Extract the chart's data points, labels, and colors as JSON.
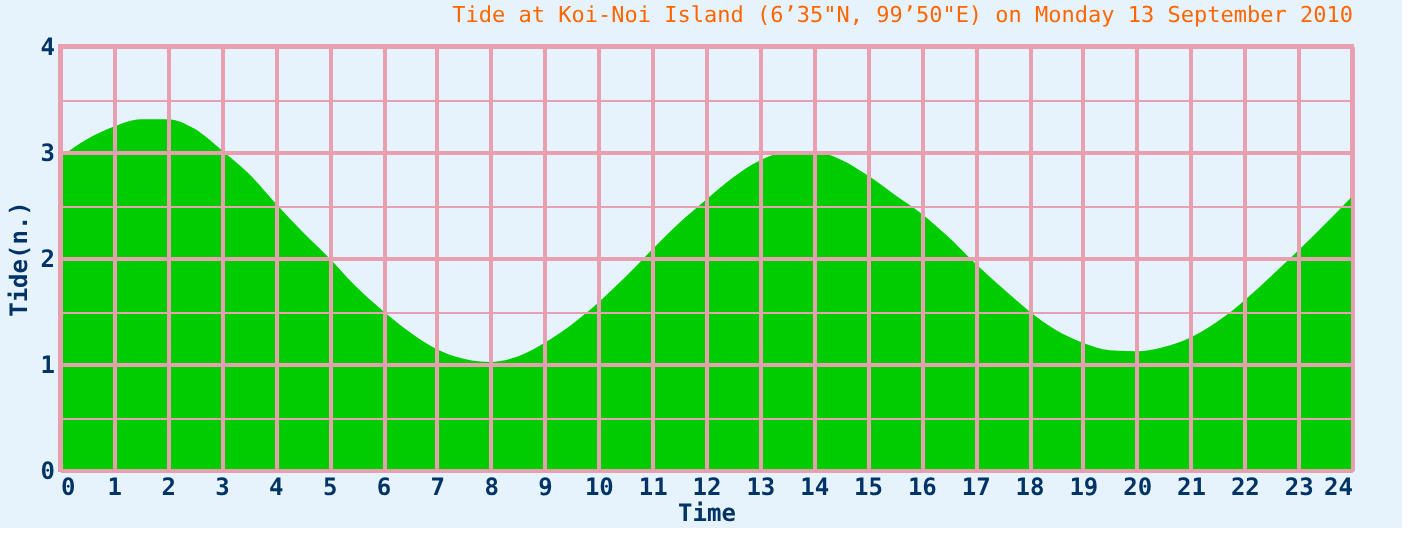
{
  "chart_data": {
    "type": "area",
    "title": "Tide at Koi-Noi Island (6’35\"N, 99’50\"E) on Monday 13 September 2010",
    "xlabel": "Time",
    "ylabel": "Tide(n.)",
    "x": [
      0,
      0.5,
      1,
      1.5,
      2,
      2.5,
      3,
      3.5,
      4,
      4.5,
      5,
      5.5,
      6,
      6.5,
      7,
      7.5,
      8,
      8.5,
      9,
      9.5,
      10,
      10.5,
      11,
      11.5,
      12,
      12.5,
      13,
      13.5,
      14,
      14.5,
      15,
      15.5,
      16,
      16.5,
      17,
      17.5,
      18,
      18.5,
      19,
      19.5,
      20,
      20.5,
      21,
      21.5,
      22,
      22.5,
      23,
      23.5,
      24
    ],
    "series": [
      {
        "color": "#00cc00",
        "values": [
          2.95,
          3.12,
          3.24,
          3.31,
          3.31,
          3.22,
          3.02,
          2.8,
          2.52,
          2.25,
          2.0,
          1.73,
          1.5,
          1.3,
          1.14,
          1.05,
          1.02,
          1.07,
          1.2,
          1.37,
          1.58,
          1.82,
          2.08,
          2.33,
          2.55,
          2.76,
          2.92,
          3.0,
          3.0,
          2.93,
          2.78,
          2.6,
          2.42,
          2.2,
          1.95,
          1.72,
          1.5,
          1.32,
          1.2,
          1.13,
          1.12,
          1.16,
          1.25,
          1.4,
          1.6,
          1.83,
          2.07,
          2.32,
          2.58
        ]
      }
    ],
    "xlim": [
      0,
      24
    ],
    "xticks": [
      0,
      1,
      2,
      3,
      4,
      5,
      6,
      7,
      8,
      9,
      10,
      11,
      12,
      13,
      14,
      15,
      16,
      17,
      18,
      19,
      20,
      21,
      22,
      23,
      24
    ],
    "ylim": [
      0,
      4
    ],
    "yticks": [
      0,
      {
        "value": 0.5,
        "label": null
      },
      1,
      {
        "value": 1.5,
        "label": null
      },
      2,
      {
        "value": 2.5,
        "label": null
      },
      3,
      {
        "value": 3.5,
        "label": null
      },
      4
    ],
    "grid": true
  }
}
